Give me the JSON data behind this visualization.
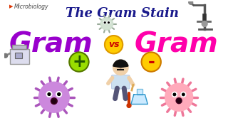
{
  "bg_color": "#ffffff",
  "title": "The Gram Stain",
  "title_color": "#1a1a8c",
  "title_fontsize": 13,
  "gram_left": "Gram",
  "gram_right": "Gram",
  "gram_color_left": "#9900cc",
  "gram_color_right": "#ff00aa",
  "vs_text": "vs",
  "vs_bg": "#ffcc00",
  "vs_border": "#dd9900",
  "vs_text_color": "#cc0000",
  "plus_bg": "#99dd00",
  "plus_text": "+",
  "plus_text_color": "#225500",
  "plus_border": "#557700",
  "minus_bg": "#ffcc00",
  "minus_text": "-",
  "minus_text_color": "#cc0000",
  "minus_border": "#cc7700",
  "micro_label": "Microbiology",
  "micro_color": "#444444",
  "micro_prefix_color": "#dd3300",
  "bacteria_left_color": "#cc88dd",
  "bacteria_left_spike": "#aa55bb",
  "bacteria_right_color": "#ffaabb",
  "bacteria_right_spike": "#ee7799",
  "bacteria_center_color": "#ccddcc",
  "bacteria_center_spike": "#99bb99"
}
